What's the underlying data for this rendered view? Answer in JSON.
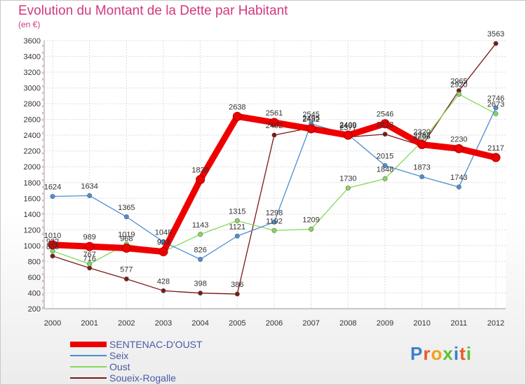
{
  "chart_data": {
    "type": "line",
    "title": "Evolution du Montant de la Dette par Habitant",
    "subtitle": "(en €)",
    "x": [
      "2000",
      "2001",
      "2002",
      "2003",
      "2004",
      "2005",
      "2006",
      "2007",
      "2008",
      "2009",
      "2010",
      "2011",
      "2012"
    ],
    "ylim": [
      200,
      3600
    ],
    "yticks": [
      200,
      400,
      600,
      800,
      1000,
      1200,
      1400,
      1600,
      1800,
      2000,
      2200,
      2400,
      2600,
      2800,
      3000,
      3200,
      3400,
      3600
    ],
    "grid": true,
    "legend_position": "bottom-left",
    "series": [
      {
        "name": "SENTENAC-D'OUST",
        "color": "#ee0000",
        "values": [
          1010,
          989,
          968,
          923,
          1838,
          2638,
          2561,
          2482,
          2400,
          2546,
          2282,
          2230,
          2117
        ]
      },
      {
        "name": "Seix",
        "color": "#4a8fd0",
        "values": [
          1624,
          1634,
          1365,
          1048,
          826,
          1121,
          1298,
          2545,
          2409,
          2015,
          1873,
          1743,
          2746
        ]
      },
      {
        "name": "Oust",
        "color": "#86d85a",
        "values": [
          932,
          767,
          1019,
          923,
          1143,
          1315,
          1192,
          1209,
          1730,
          1848,
          2320,
          2920,
          2673
        ]
      },
      {
        "name": "Soueix-Rogalle",
        "color": "#7a1818",
        "values": [
          868,
          716,
          577,
          428,
          398,
          386,
          2402,
          2495,
          2377,
          2413,
          2266,
          2965,
          3563
        ]
      }
    ]
  },
  "logo": {
    "text": "Proxiti"
  }
}
